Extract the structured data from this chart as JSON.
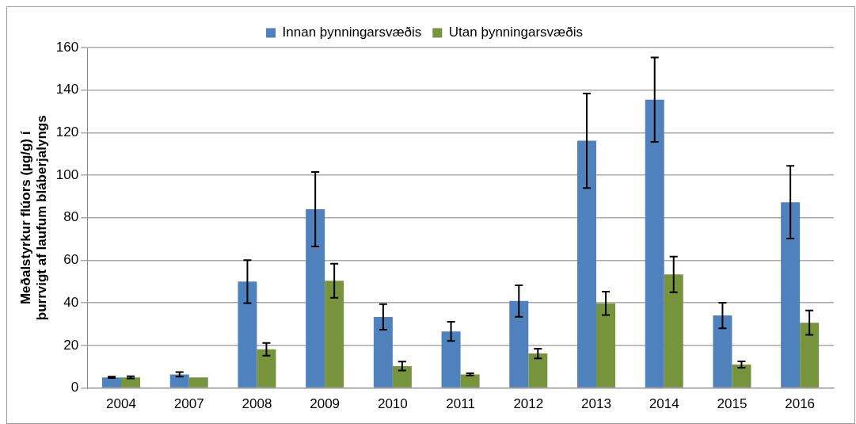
{
  "chart_data": {
    "type": "bar",
    "ylabel": "Meðalstyrkur flúors (µg/g) í þurrvigt af laufum bláberjalyngs",
    "categories": [
      "2004",
      "2007",
      "2008",
      "2009",
      "2010",
      "2011",
      "2012",
      "2013",
      "2014",
      "2015",
      "2016"
    ],
    "series": [
      {
        "name": "Innan þynningarsvæðis",
        "color": "#4f81bd",
        "values": [
          5.0,
          6.4,
          50.0,
          84.0,
          33.4,
          26.6,
          40.9,
          116.2,
          135.5,
          34.1,
          87.3
        ],
        "errors": [
          0.3,
          1.1,
          10.1,
          17.5,
          6.0,
          4.5,
          7.4,
          22.2,
          19.8,
          6.0,
          17.1
        ]
      },
      {
        "name": "Utan þynningarsvæðis",
        "color": "#77933c",
        "values": [
          5.0,
          5.0,
          18.2,
          50.4,
          10.3,
          6.4,
          16.2,
          39.8,
          53.4,
          11.0,
          30.7
        ],
        "errors": [
          0.5,
          null,
          3.0,
          8.0,
          2.1,
          0.5,
          2.3,
          5.5,
          8.4,
          1.5,
          5.7
        ]
      }
    ],
    "ylim": [
      0,
      160
    ],
    "yticks": [
      0,
      20,
      40,
      60,
      80,
      100,
      120,
      140,
      160
    ],
    "grid": "y",
    "legend": "top"
  }
}
